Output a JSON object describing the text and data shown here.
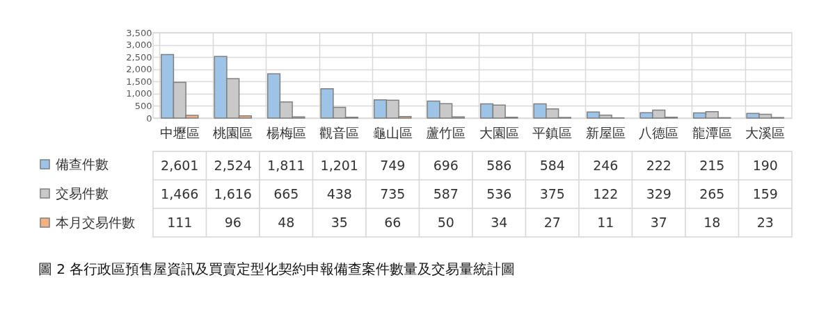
{
  "chart_data": {
    "type": "bar",
    "title": "圖 2 各行政區預售屋資訊及買賣定型化契約申報備查案件數量及交易量統計圖",
    "categories": [
      "中壢區",
      "桃園區",
      "楊梅區",
      "觀音區",
      "龜山區",
      "蘆竹區",
      "大園區",
      "平鎮區",
      "新屋區",
      "八德區",
      "龍潭區",
      "大溪區"
    ],
    "series": [
      {
        "name": "備查件數",
        "color": "#9dc3e6",
        "values": [
          2601,
          2524,
          1811,
          1201,
          749,
          696,
          586,
          584,
          246,
          222,
          215,
          190
        ],
        "value_labels": [
          "2,601",
          "2,524",
          "1,811",
          "1,201",
          "749",
          "696",
          "586",
          "584",
          "246",
          "222",
          "215",
          "190"
        ]
      },
      {
        "name": "交易件數",
        "color": "#c9c9c9",
        "values": [
          1466,
          1616,
          665,
          438,
          735,
          587,
          536,
          375,
          122,
          329,
          265,
          159
        ],
        "value_labels": [
          "1,466",
          "1,616",
          "665",
          "438",
          "735",
          "587",
          "536",
          "375",
          "122",
          "329",
          "265",
          "159"
        ]
      },
      {
        "name": "本月交易件數",
        "color": "#f4b183",
        "values": [
          111,
          96,
          48,
          35,
          66,
          50,
          34,
          27,
          11,
          37,
          18,
          23
        ],
        "value_labels": [
          "111",
          "96",
          "48",
          "35",
          "66",
          "50",
          "34",
          "27",
          "11",
          "37",
          "18",
          "23"
        ]
      }
    ],
    "ylim": [
      0,
      3500
    ],
    "yticks": [
      0,
      500,
      {
        "value": 1000,
        "label": "1,000"
      },
      {
        "value": 1500,
        "label": "1,500"
      },
      {
        "value": 2000,
        "label": "2,000"
      },
      {
        "value": 2500,
        "label": "2,500"
      },
      {
        "value": 3000,
        "label": "3,000"
      },
      {
        "value": 3500,
        "label": "3,500"
      }
    ],
    "grid": true,
    "legend": "bottom left"
  }
}
